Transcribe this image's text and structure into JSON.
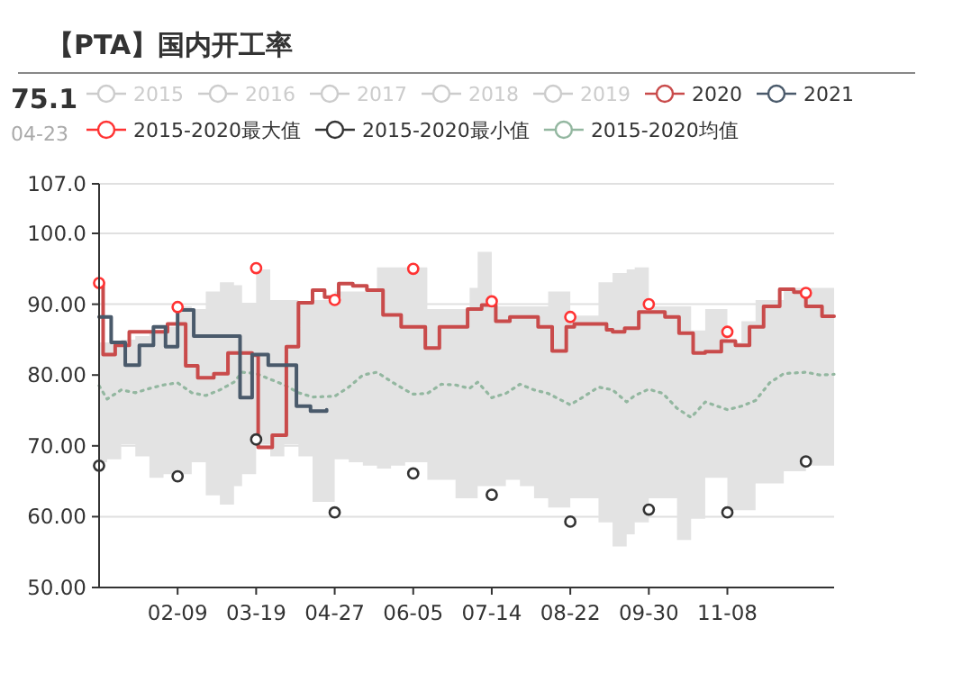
{
  "chart_data": {
    "type": "line",
    "title": "【PTA】国内开工率",
    "annotations": [
      "75.1",
      "04-23"
    ],
    "xlim": [
      "--01-01",
      "--12-31"
    ],
    "xticks": [
      {
        "value": "--02-09",
        "label": "02-09"
      },
      {
        "value": "--03-19",
        "label": "03-19"
      },
      {
        "value": "--04-27",
        "label": "04-27"
      },
      {
        "value": "--06-05",
        "label": "06-05"
      },
      {
        "value": "--07-14",
        "label": "07-14"
      },
      {
        "value": "--08-22",
        "label": "08-22"
      },
      {
        "value": "--09-30",
        "label": "09-30"
      },
      {
        "value": "--11-08",
        "label": "11-08"
      }
    ],
    "ylim": [
      50,
      107
    ],
    "yticks": [
      {
        "value": 50,
        "label": "50.00"
      },
      {
        "value": 60,
        "label": "60.00"
      },
      {
        "value": 70,
        "label": "70.00"
      },
      {
        "value": 80,
        "label": "80.00"
      },
      {
        "value": 90,
        "label": "90.00"
      },
      {
        "value": 100,
        "label": "100.0"
      },
      {
        "value": 107,
        "label": "107.0"
      }
    ],
    "grid": "y",
    "legend": "top",
    "series": [
      {
        "name": "2015",
        "color": "#cccccc",
        "type": "line"
      },
      {
        "name": "2016",
        "color": "#cccccc",
        "type": "line"
      },
      {
        "name": "2017",
        "color": "#cccccc",
        "type": "line"
      },
      {
        "name": "2018",
        "color": "#cccccc",
        "type": "line"
      },
      {
        "name": "2019",
        "color": "#cccccc",
        "type": "line"
      },
      {
        "name": "2020",
        "color": "#c94b4b",
        "type": "step",
        "marker": "none",
        "x": [
          "--01-01",
          "--01-03",
          "--01-09",
          "--01-16",
          "--02-04",
          "--02-13",
          "--02-19",
          "--02-27",
          "--03-05",
          "--03-17",
          "--03-20",
          "--03-27",
          "--04-03",
          "--04-09",
          "--04-16",
          "--04-22",
          "--04-29",
          "--05-06",
          "--05-13",
          "--05-21",
          "--05-30",
          "--06-11",
          "--06-18",
          "--07-02",
          "--07-09",
          "--07-16",
          "--07-23",
          "--08-06",
          "--08-13",
          "--08-20",
          "--08-24",
          "--09-09",
          "--09-12",
          "--09-18",
          "--09-25",
          "--10-08",
          "--10-15",
          "--10-22",
          "--10-28",
          "--11-05",
          "--11-12",
          "--11-19",
          "--11-26",
          "--12-04",
          "--12-11",
          "--12-17",
          "--12-25",
          "--12-31"
        ],
        "values": [
          93.1,
          82.9,
          84.2,
          86.1,
          87.2,
          81.3,
          79.6,
          80.2,
          83.1,
          82.8,
          69.8,
          71.5,
          84.0,
          90.2,
          92.0,
          91.0,
          92.9,
          92.6,
          92.0,
          88.5,
          86.8,
          83.8,
          86.8,
          89.3,
          89.9,
          87.6,
          88.2,
          86.8,
          83.4,
          86.8,
          87.2,
          86.4,
          86.1,
          86.6,
          88.9,
          88.2,
          85.9,
          83.1,
          83.3,
          84.8,
          84.2,
          86.8,
          89.7,
          92.1,
          91.7,
          89.7,
          88.3,
          88.3
        ]
      },
      {
        "name": "2021",
        "color": "#4a5a6b",
        "type": "step",
        "marker": "none",
        "x": [
          "--01-01",
          "--01-07",
          "--01-14",
          "--01-21",
          "--01-28",
          "--02-03",
          "--02-09",
          "--02-17",
          "--03-11",
          "--03-17",
          "--03-25",
          "--04-08",
          "--04-15",
          "--04-23"
        ],
        "values": [
          88.2,
          84.6,
          81.4,
          84.2,
          86.8,
          84.0,
          89.2,
          85.5,
          76.8,
          82.9,
          81.4,
          75.6,
          74.9,
          75.1
        ]
      },
      {
        "name": "2015-2020最大值",
        "color": "#ff3333",
        "type": "scatter",
        "marker": "circle",
        "x": [
          "--01-01",
          "--02-09",
          "--03-19",
          "--04-27",
          "--06-05",
          "--07-14",
          "--08-22",
          "--09-30",
          "--11-08",
          "--12-17"
        ],
        "values": [
          93.0,
          89.6,
          95.1,
          90.6,
          95.0,
          90.4,
          88.2,
          90.0,
          86.1,
          91.6
        ]
      },
      {
        "name": "2015-2020最小值",
        "color": "#333333",
        "type": "scatter",
        "marker": "circle",
        "x": [
          "--01-01",
          "--02-09",
          "--03-19",
          "--04-27",
          "--06-05",
          "--07-14",
          "--08-22",
          "--09-30",
          "--11-08",
          "--12-17"
        ],
        "values": [
          67.2,
          65.7,
          70.9,
          60.6,
          66.1,
          63.1,
          59.3,
          61.0,
          60.6,
          67.8
        ]
      },
      {
        "name": "2015-2020均值",
        "color": "#93b7a0",
        "type": "line",
        "line_style": "dotted",
        "marker": "none",
        "x": [
          "--01-01",
          "--01-05",
          "--01-12",
          "--01-19",
          "--01-26",
          "--02-02",
          "--02-09",
          "--02-16",
          "--02-23",
          "--03-01",
          "--03-08",
          "--03-12",
          "--03-19",
          "--03-26",
          "--04-02",
          "--04-09",
          "--04-16",
          "--04-27",
          "--05-04",
          "--05-11",
          "--05-18",
          "--05-25",
          "--06-01",
          "--06-05",
          "--06-12",
          "--06-19",
          "--06-26",
          "--07-03",
          "--07-07",
          "--07-14",
          "--07-21",
          "--07-28",
          "--08-04",
          "--08-11",
          "--08-22",
          "--08-29",
          "--09-05",
          "--09-12",
          "--09-19",
          "--09-23",
          "--09-30",
          "--10-07",
          "--10-14",
          "--10-21",
          "--10-28",
          "--11-08",
          "--11-15",
          "--11-22",
          "--11-29",
          "--12-06",
          "--12-17",
          "--12-24",
          "--12-31"
        ],
        "values": [
          78.5,
          76.6,
          77.9,
          77.5,
          78.1,
          78.6,
          78.9,
          77.5,
          77.1,
          77.9,
          79.0,
          80.4,
          80.2,
          79.4,
          78.6,
          77.5,
          76.9,
          77.0,
          78.3,
          80.0,
          80.4,
          79.1,
          77.9,
          77.3,
          77.4,
          78.7,
          78.6,
          78.1,
          79.0,
          76.8,
          77.4,
          78.7,
          77.9,
          77.4,
          75.8,
          77.0,
          78.3,
          77.9,
          76.2,
          77.1,
          78.0,
          77.4,
          75.3,
          74.0,
          76.2,
          75.1,
          75.6,
          76.4,
          78.9,
          80.2,
          80.4,
          80.0,
          80.1
        ],
        "lower": [
          67.7,
          68.1,
          70.2,
          68.5,
          65.5,
          66.0,
          66.0,
          67.7,
          63.0,
          61.7,
          64.3,
          66.0,
          70.2,
          68.5,
          70.2,
          68.5,
          62.1,
          68.1,
          67.7,
          67.2,
          66.8,
          67.2,
          67.7,
          67.7,
          65.2,
          65.2,
          62.6,
          62.6,
          64.3,
          64.3,
          65.2,
          64.3,
          62.6,
          61.3,
          62.6,
          62.6,
          59.2,
          55.8,
          57.5,
          59.2,
          62.6,
          62.6,
          56.7,
          59.7,
          65.5,
          60.9,
          60.9,
          64.7,
          64.7,
          66.4,
          67.2,
          67.2,
          67.2
        ],
        "upper": [
          84.6,
          84.6,
          85.0,
          85.5,
          86.3,
          86.8,
          89.7,
          89.3,
          91.8,
          93.1,
          92.7,
          90.2,
          94.9,
          90.6,
          90.6,
          90.2,
          90.6,
          91.8,
          91.8,
          91.8,
          95.2,
          95.2,
          95.2,
          95.2,
          89.3,
          89.3,
          89.3,
          92.3,
          97.4,
          89.7,
          89.7,
          89.7,
          89.7,
          91.8,
          88.4,
          88.4,
          93.1,
          94.4,
          94.9,
          95.2,
          89.7,
          89.7,
          89.7,
          86.3,
          89.3,
          84.6,
          87.6,
          90.6,
          90.6,
          92.3,
          92.3,
          92.3,
          93.1
        ]
      }
    ]
  }
}
